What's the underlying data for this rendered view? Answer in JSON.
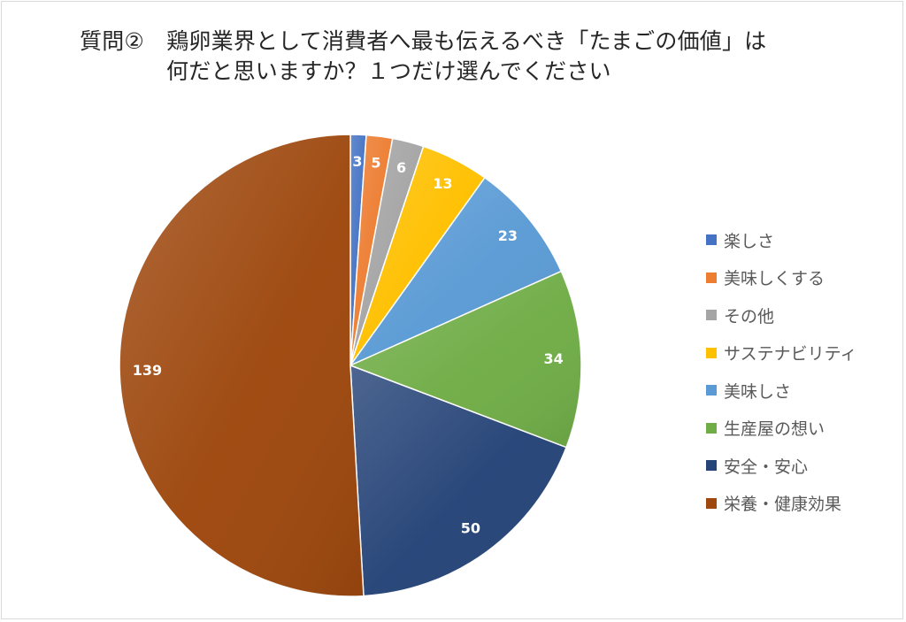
{
  "title": {
    "line1": "質問②　鶏卵業界として消費者へ最も伝えるべき「たまごの価値」は",
    "line2": "何だと思いますか？１つだけ選んでください"
  },
  "chart_data": {
    "type": "pie",
    "title": "質問②　鶏卵業界として消費者へ最も伝えるべき「たまごの価値」は何だと思いますか？１つだけ選んでください",
    "start_angle": "top",
    "direction": "clockwise",
    "legend_position": "right",
    "data_labels": true,
    "slices": [
      {
        "label": "楽しさ",
        "value": 3,
        "color": "#4472c4"
      },
      {
        "label": "美味しくする",
        "value": 5,
        "color": "#ed7d31"
      },
      {
        "label": "その他",
        "value": 6,
        "color": "#a5a5a5"
      },
      {
        "label": "サステナビリティ",
        "value": 13,
        "color": "#ffc000"
      },
      {
        "label": "美味しさ",
        "value": 23,
        "color": "#5b9bd5"
      },
      {
        "label": "生産屋の想い",
        "value": 34,
        "color": "#70ad47"
      },
      {
        "label": "安全・安心",
        "value": 50,
        "color": "#264478"
      },
      {
        "label": "栄養・健康効果",
        "value": 139,
        "color": "#9e480e"
      }
    ]
  }
}
